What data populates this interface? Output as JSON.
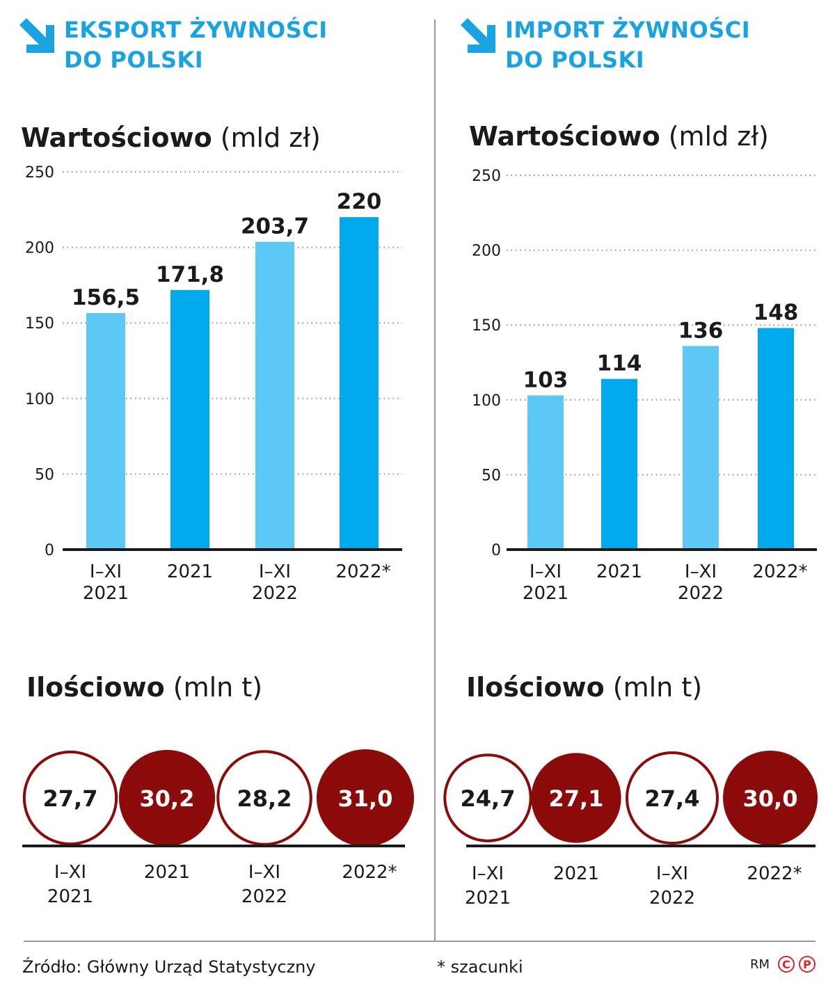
{
  "colors": {
    "header": "#1aa3e0",
    "bar_light": "#5ec8f5",
    "bar_dark": "#00a9eb",
    "circle": "#8b0a0a",
    "axis": "#1a1a1a",
    "grid": "#8c8c8c"
  },
  "icons": {
    "arrow": "arrow-down-right-icon"
  },
  "left": {
    "header": {
      "line1": "EKSPORT ŻYWNOŚCI",
      "line2": "DO POLSKI"
    },
    "value_title": {
      "bold": "Wartościowo",
      "unit": "(mld zł)"
    },
    "quantity_title": {
      "bold": "Ilościowo",
      "unit": "(mln t)"
    }
  },
  "right": {
    "header": {
      "line1": "IMPORT ŻYWNOŚCI",
      "line2": "DO POLSKI"
    },
    "value_title": {
      "bold": "Wartościowo",
      "unit": "(mld zł)"
    },
    "quantity_title": {
      "bold": "Ilościowo",
      "unit": "(mln t)"
    }
  },
  "chart_data": [
    {
      "type": "bar",
      "panel": "EKSPORT ŻYWNOŚCI DO POLSKI",
      "title": "Wartościowo",
      "unit": "(mld zł)",
      "categories": [
        [
          "I–XI",
          "2021"
        ],
        [
          "2021"
        ],
        [
          "I–XI",
          "2022"
        ],
        [
          "2022*"
        ]
      ],
      "values": [
        156.5,
        171.8,
        203.7,
        220
      ],
      "value_labels": [
        "156,5",
        "171,8",
        "203,7",
        "220"
      ],
      "bar_shade": [
        "light",
        "dark",
        "light",
        "dark"
      ],
      "yticks": [
        0,
        50,
        100,
        150,
        200,
        250
      ],
      "ylim": [
        0,
        250
      ],
      "grid": "dotted"
    },
    {
      "type": "bar",
      "panel": "IMPORT ŻYWNOŚCI DO POLSKI",
      "title": "Wartościowo",
      "unit": "(mld zł)",
      "categories": [
        [
          "I–XI",
          "2021"
        ],
        [
          "2021"
        ],
        [
          "I–XI",
          "2022"
        ],
        [
          "2022*"
        ]
      ],
      "values": [
        103,
        114,
        136,
        148
      ],
      "value_labels": [
        "103",
        "114",
        "136",
        "148"
      ],
      "bar_shade": [
        "light",
        "dark",
        "light",
        "dark"
      ],
      "yticks": [
        0,
        50,
        100,
        150,
        200,
        250
      ],
      "ylim": [
        0,
        250
      ],
      "grid": "dotted"
    },
    {
      "type": "circles",
      "panel": "EKSPORT ŻYWNOŚCI DO POLSKI",
      "title": "Ilościowo",
      "unit": "(mln t)",
      "categories": [
        [
          "I–XI",
          "2021"
        ],
        [
          "2021"
        ],
        [
          "I–XI",
          "2022"
        ],
        [
          "2022*"
        ]
      ],
      "values": [
        27.7,
        30.2,
        28.2,
        31.0
      ],
      "value_labels": [
        "27,7",
        "30,2",
        "28,2",
        "31,0"
      ],
      "filled": [
        false,
        true,
        false,
        true
      ]
    },
    {
      "type": "circles",
      "panel": "IMPORT ŻYWNOŚCI DO POLSKI",
      "title": "Ilościowo",
      "unit": "(mln t)",
      "categories": [
        [
          "I–XI",
          "2021"
        ],
        [
          "2021"
        ],
        [
          "I–XI",
          "2022"
        ],
        [
          "2022*"
        ]
      ],
      "values": [
        24.7,
        27.1,
        27.4,
        30.0
      ],
      "value_labels": [
        "24,7",
        "27,1",
        "27,4",
        "30,0"
      ],
      "filled": [
        false,
        true,
        false,
        true
      ]
    }
  ],
  "footer": {
    "source": "Źródło: Główny Urząd Statystyczny",
    "note": "* szacunki",
    "credit": "RM",
    "logo_c": "C",
    "logo_p": "P"
  }
}
